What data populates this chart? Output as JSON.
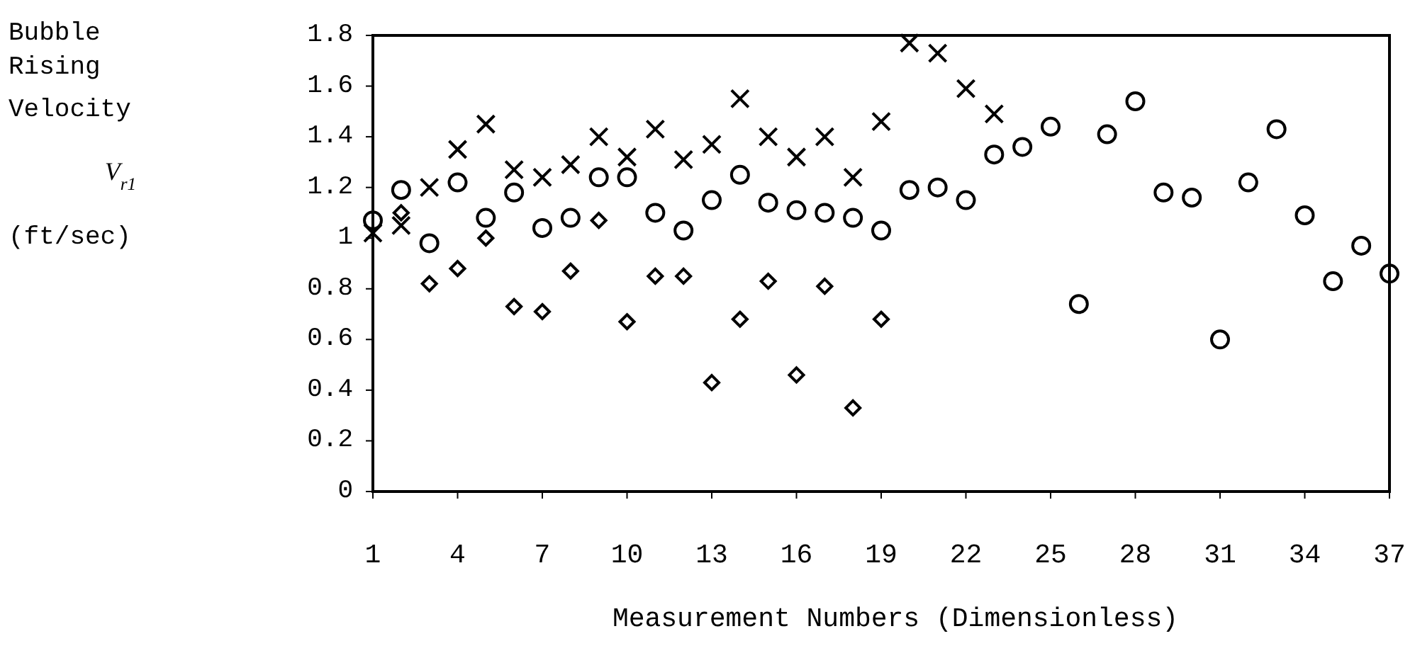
{
  "chart_data": {
    "type": "scatter",
    "xlabel": "Measurement Numbers (Dimensionless)",
    "ylabel": "Bubble Rising Velocity V$_{r1}$ (ft/sec)",
    "x": [
      1,
      2,
      3,
      4,
      5,
      6,
      7,
      8,
      9,
      10,
      11,
      12,
      13,
      14,
      15,
      16,
      17,
      18,
      19,
      20,
      21,
      22,
      23,
      24,
      25,
      26,
      27,
      28,
      29,
      30,
      31,
      32,
      33,
      34,
      35,
      36,
      37
    ],
    "xlim": [
      1,
      37
    ],
    "xticks": [
      1,
      4,
      7,
      10,
      13,
      16,
      19,
      22,
      25,
      28,
      31,
      34,
      37
    ],
    "ylim": [
      0,
      1.8
    ],
    "yticks": [
      0,
      0.2,
      0.4,
      0.6,
      0.8,
      1,
      1.2,
      1.4,
      1.6,
      1.8
    ],
    "grid": false,
    "series": [
      {
        "color": "#000000",
        "marker": "circle",
        "values": [
          1.07,
          1.19,
          0.98,
          1.22,
          1.08,
          1.18,
          1.04,
          1.08,
          1.24,
          1.24,
          1.1,
          1.03,
          1.15,
          1.25,
          1.14,
          1.11,
          1.1,
          1.08,
          1.03,
          1.19,
          1.2,
          1.15,
          1.33,
          1.36,
          1.44,
          0.74,
          1.41,
          1.54,
          1.18,
          1.16,
          0.6,
          1.22,
          1.43,
          1.09,
          0.83,
          0.97,
          0.86
        ]
      },
      {
        "color": "#000000",
        "marker": "cross",
        "x": [
          1,
          2,
          3,
          4,
          5,
          6,
          7,
          8,
          9,
          10,
          11,
          12,
          13,
          14,
          15,
          16,
          17,
          18,
          19,
          20,
          21,
          22,
          23
        ],
        "values": [
          1.02,
          1.05,
          1.2,
          1.35,
          1.45,
          1.27,
          1.24,
          1.29,
          1.4,
          1.32,
          1.43,
          1.31,
          1.37,
          1.55,
          1.4,
          1.32,
          1.4,
          1.24,
          1.46,
          1.77,
          1.73,
          1.59,
          1.49
        ]
      },
      {
        "color": "#000000",
        "marker": "diamond",
        "x": [
          2,
          3,
          4,
          5,
          6,
          7,
          8,
          9,
          10,
          11,
          12,
          13,
          14,
          15,
          16,
          17,
          18,
          19
        ],
        "values": [
          1.1,
          0.82,
          0.88,
          1.0,
          0.73,
          0.71,
          0.87,
          1.07,
          0.67,
          0.85,
          0.85,
          0.43,
          0.68,
          0.83,
          0.46,
          0.81,
          0.33,
          0.68
        ]
      }
    ]
  }
}
